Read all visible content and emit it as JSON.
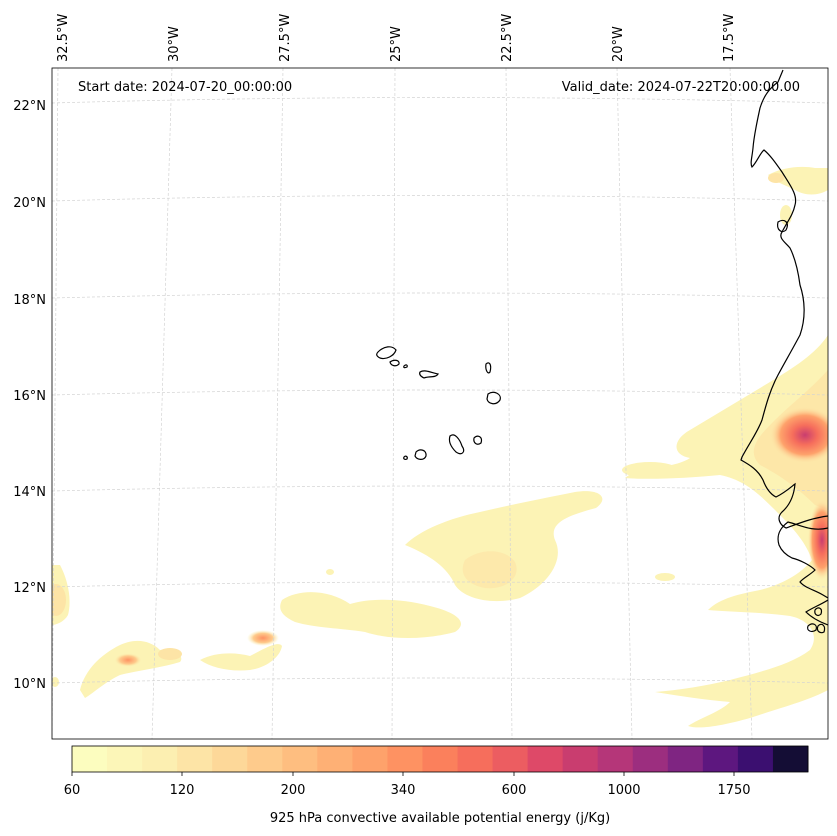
{
  "header": {
    "start_date": "Start date: 2024-07-20_00:00:00",
    "valid_date": "Valid_date: 2024-07-22T20:00:00.00"
  },
  "axes": {
    "lon_labels": [
      "32.5°W",
      "30°W",
      "27.5°W",
      "25°W",
      "22.5°W",
      "20°W",
      "17.5°W"
    ],
    "lat_labels": [
      "22°N",
      "20°N",
      "18°N",
      "16°N",
      "14°N",
      "12°N",
      "10°N"
    ]
  },
  "colorbar": {
    "label": "925 hPa convective available potential energy (j/Kg)",
    "tick_labels": [
      "60",
      "120",
      "200",
      "340",
      "600",
      "1000",
      "1750"
    ],
    "colors": [
      "#fcfdbf",
      "#fcf6b8",
      "#fcefb1",
      "#fde4a6",
      "#fdd899",
      "#fecb8c",
      "#febe80",
      "#feb075",
      "#fea26b",
      "#fe9262",
      "#fb805c",
      "#f66e5c",
      "#ec5d61",
      "#de4968",
      "#c93d6f",
      "#b53679",
      "#9c2e7f",
      "#7f2582",
      "#5d177f",
      "#3b0f70",
      "#140d35"
    ]
  },
  "map": {
    "land_color": "#ffffff",
    "coastline_color": "#000000",
    "gridline_color": "#cccccc",
    "cape_fields": [
      {
        "area": "West African coast (Senegal)",
        "level": "1000"
      },
      {
        "area": "Offshore band near 12-14°N",
        "level": "200"
      },
      {
        "area": "Western edge near 11°N",
        "level": "200"
      }
    ]
  }
}
